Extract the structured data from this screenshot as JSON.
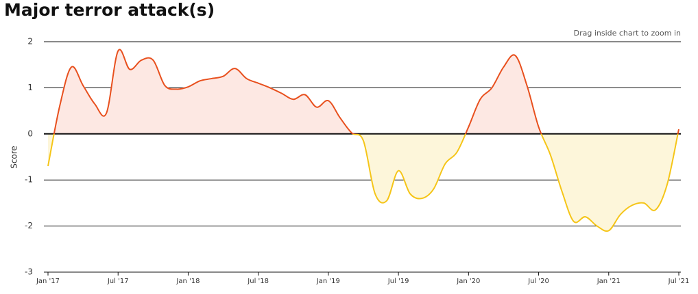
{
  "chart_data": {
    "type": "line",
    "title": "Major terror attack(s)",
    "note": "Drag inside chart to zoom in",
    "ylabel": "Score",
    "x": [
      "2017-01",
      "2017-02",
      "2017-03",
      "2017-04",
      "2017-05",
      "2017-06",
      "2017-07",
      "2017-08",
      "2017-09",
      "2017-10",
      "2017-11",
      "2017-12",
      "2018-01",
      "2018-02",
      "2018-03",
      "2018-04",
      "2018-05",
      "2018-06",
      "2018-07",
      "2018-08",
      "2018-09",
      "2018-10",
      "2018-11",
      "2018-12",
      "2019-01",
      "2019-02",
      "2019-03",
      "2019-04",
      "2019-05",
      "2019-06",
      "2019-07",
      "2019-08",
      "2019-09",
      "2019-10",
      "2019-11",
      "2019-12",
      "2020-01",
      "2020-02",
      "2020-03",
      "2020-04",
      "2020-05",
      "2020-06",
      "2020-07",
      "2020-08",
      "2020-09",
      "2020-10",
      "2020-11",
      "2020-12",
      "2021-01",
      "2021-02",
      "2021-03",
      "2021-04",
      "2021-05",
      "2021-06",
      "2021-07"
    ],
    "values": [
      -0.7,
      0.6,
      1.45,
      1.05,
      0.65,
      0.45,
      1.8,
      1.4,
      1.6,
      1.6,
      1.05,
      0.97,
      1.02,
      1.15,
      1.2,
      1.25,
      1.42,
      1.2,
      1.1,
      1.0,
      0.88,
      0.75,
      0.85,
      0.58,
      0.72,
      0.35,
      0.02,
      -0.15,
      -1.3,
      -1.45,
      -0.8,
      -1.3,
      -1.4,
      -1.2,
      -0.65,
      -0.4,
      0.15,
      0.75,
      1.0,
      1.45,
      1.7,
      1.05,
      0.15,
      -0.45,
      -1.25,
      -1.9,
      -1.8,
      -2.0,
      -2.1,
      -1.75,
      -1.55,
      -1.5,
      -1.65,
      -1.1,
      0.1
    ],
    "color": "#e8501e",
    "negative_color": "#f5c518",
    "fill_color": "#fde8e3",
    "negative_fill_color": "#fdf6da",
    "xlim": [
      "2017-01",
      "2021-07"
    ],
    "xticks": [
      {
        "value": "2017-01",
        "label": "Jan '17"
      },
      {
        "value": "2017-07",
        "label": "Jul '17"
      },
      {
        "value": "2018-01",
        "label": "Jan '18"
      },
      {
        "value": "2018-07",
        "label": "Jul '18"
      },
      {
        "value": "2019-01",
        "label": "Jan '19"
      },
      {
        "value": "2019-07",
        "label": "Jul '19"
      },
      {
        "value": "2020-01",
        "label": "Jan '20"
      },
      {
        "value": "2020-07",
        "label": "Jul '20"
      },
      {
        "value": "2021-01",
        "label": "Jan '21"
      },
      {
        "value": "2021-07",
        "label": "Jul '21"
      }
    ],
    "ylim": [
      -3,
      2
    ],
    "yticks": [
      -3,
      -2,
      -1,
      0,
      1,
      2
    ],
    "grid": true
  }
}
